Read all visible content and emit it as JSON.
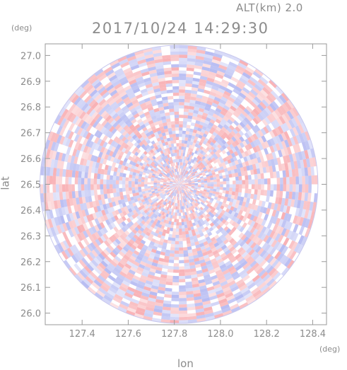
{
  "header": {
    "altitude_label": "ALT(km) 2.0",
    "datetime": "2017/10/24 14:29:30"
  },
  "chart_data": {
    "type": "heatmap",
    "title": "2017/10/24 14:29:30",
    "xlabel": "lon",
    "ylabel": "lat",
    "x_unit": "(deg)",
    "y_unit": "(deg)",
    "xlim": [
      127.24,
      128.46
    ],
    "ylim": [
      25.955,
      27.045
    ],
    "x_ticks": [
      "127.4",
      "127.6",
      "127.8",
      "128.0",
      "128.2",
      "128.4"
    ],
    "x_tick_values": [
      127.4,
      127.6,
      127.8,
      128.0,
      128.2,
      128.4
    ],
    "y_ticks": [
      "26.0",
      "26.1",
      "26.2",
      "26.3",
      "26.4",
      "26.5",
      "26.6",
      "26.7",
      "26.8",
      "26.9",
      "27.0"
    ],
    "y_tick_values": [
      26.0,
      26.1,
      26.2,
      26.3,
      26.4,
      26.5,
      26.6,
      26.7,
      26.8,
      26.9,
      27.0
    ],
    "radar_center": {
      "lon": 127.82,
      "lat": 26.5
    },
    "radar_radius_lat_deg": 0.54,
    "colors": {
      "positive": "#f7a3a8",
      "negative": "#aab0f0",
      "neutral": "#ffffff",
      "axis": "#9a9a9a"
    },
    "grid": false
  }
}
